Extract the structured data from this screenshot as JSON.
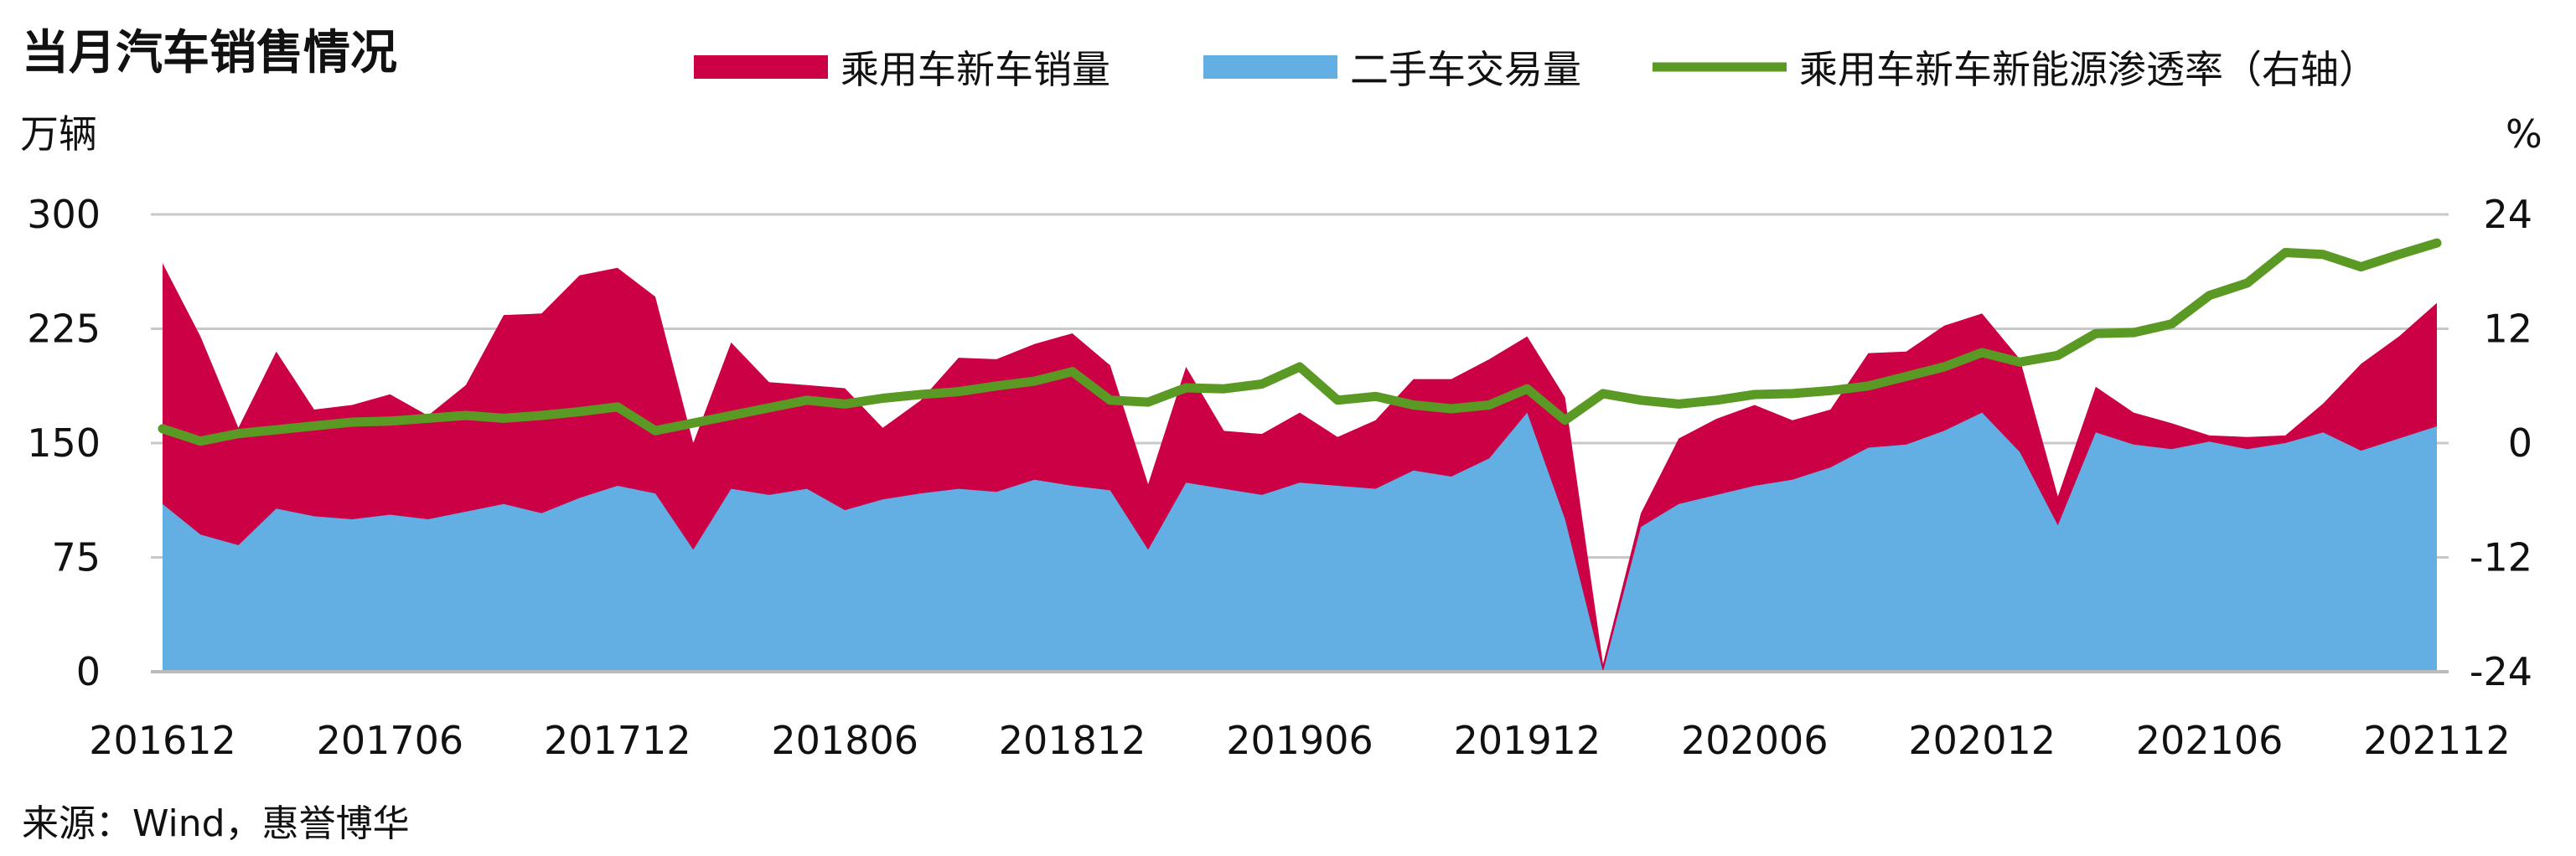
{
  "chart_data": {
    "type": "area",
    "title": "当月汽车销售情况",
    "left_unit": "万辆",
    "right_unit": "%",
    "source": "来源：Wind，惠誉博华",
    "ylim": [
      0,
      300
    ],
    "y2lim": [
      -24,
      24
    ],
    "y_ticks": [
      "0",
      "75",
      "150",
      "225",
      "300"
    ],
    "y2_ticks": [
      "-24",
      "-12",
      "0",
      "12",
      "24"
    ],
    "x_tick_labels": [
      "201612",
      "201706",
      "201712",
      "201806",
      "201812",
      "201906",
      "201912",
      "202006",
      "202012",
      "202106",
      "202112"
    ],
    "colors": {
      "new_car": "#CC0044",
      "used_car": "#63AEE3",
      "penetration": "#5A9A24",
      "grid": "#C8C8C8"
    },
    "x": [
      "201612",
      "201701",
      "201702",
      "201703",
      "201704",
      "201705",
      "201706",
      "201707",
      "201708",
      "201709",
      "201710",
      "201711",
      "201712",
      "201801",
      "201802",
      "201803",
      "201804",
      "201805",
      "201806",
      "201807",
      "201808",
      "201809",
      "201810",
      "201811",
      "201812",
      "201901",
      "201902",
      "201903",
      "201904",
      "201905",
      "201906",
      "201907",
      "201908",
      "201909",
      "201910",
      "201911",
      "201912",
      "202001",
      "202002",
      "202003",
      "202004",
      "202005",
      "202006",
      "202007",
      "202008",
      "202009",
      "202010",
      "202011",
      "202012",
      "202101",
      "202102",
      "202103",
      "202104",
      "202105",
      "202106",
      "202107",
      "202108",
      "202109",
      "202110",
      "202111",
      "202112"
    ],
    "series": [
      {
        "name": "乘用车新车销量",
        "type": "area",
        "axis": "left",
        "values": [
          268,
          220,
          160,
          210,
          172,
          175,
          182,
          168,
          188,
          234,
          235,
          260,
          265,
          246,
          150,
          216,
          190,
          188,
          186,
          160,
          178,
          206,
          205,
          215,
          222,
          201,
          123,
          200,
          158,
          156,
          170,
          154,
          165,
          192,
          192,
          205,
          220,
          180,
          5,
          104,
          153,
          166,
          175,
          165,
          172,
          209,
          210,
          227,
          235,
          205,
          115,
          187,
          170,
          163,
          155,
          154,
          155,
          176,
          202,
          220,
          242
        ]
      },
      {
        "name": "二手车交易量",
        "type": "area",
        "axis": "left",
        "values": [
          110,
          90,
          83,
          107,
          102,
          100,
          103,
          100,
          105,
          110,
          104,
          114,
          122,
          117,
          80,
          120,
          116,
          120,
          106,
          113,
          117,
          120,
          118,
          126,
          122,
          119,
          80,
          124,
          120,
          116,
          124,
          122,
          120,
          132,
          128,
          140,
          170,
          100,
          0,
          95,
          110,
          116,
          122,
          126,
          134,
          147,
          149,
          158,
          170,
          144,
          96,
          157,
          149,
          146,
          151,
          146,
          150,
          157,
          145,
          153,
          161
        ]
      },
      {
        "name": "乘用车新车新能源渗透率（右轴）",
        "type": "line",
        "axis": "right",
        "values": [
          1.5,
          0.2,
          1.0,
          1.4,
          1.8,
          2.2,
          2.3,
          2.6,
          2.9,
          2.6,
          2.9,
          3.3,
          3.8,
          1.3,
          2.1,
          2.9,
          3.7,
          4.5,
          4.1,
          4.7,
          5.1,
          5.4,
          6.0,
          6.5,
          7.5,
          4.5,
          4.3,
          5.8,
          5.7,
          6.2,
          8.0,
          4.5,
          4.9,
          4.0,
          3.6,
          4.0,
          5.7,
          2.4,
          5.2,
          4.5,
          4.1,
          4.5,
          5.1,
          5.2,
          5.5,
          6.0,
          7.0,
          8.0,
          9.5,
          8.5,
          9.2,
          11.5,
          11.6,
          12.5,
          15.5,
          16.8,
          20.0,
          19.8,
          18.5,
          19.8,
          21.0
        ]
      }
    ],
    "legend_position": "top",
    "grid": true
  }
}
